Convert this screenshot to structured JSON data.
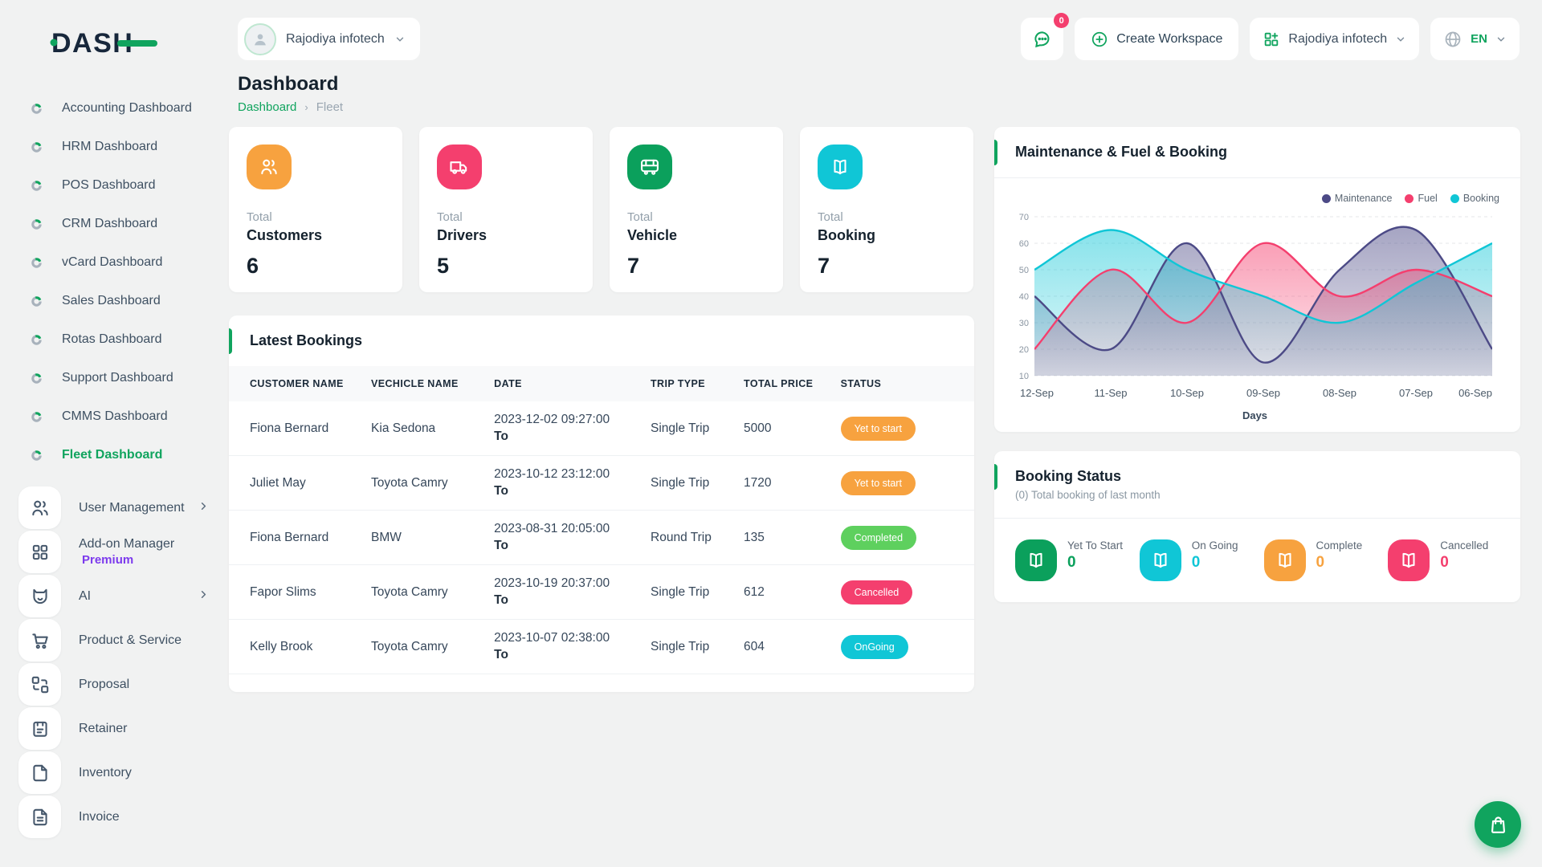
{
  "brand": {
    "logo_text": "DASH",
    "accent_color": "#10a45e",
    "dark_color": "#17273b"
  },
  "header": {
    "workspace": "Rajodiya infotech",
    "messages_badge": "0",
    "create_workspace": "Create Workspace",
    "account": "Rajodiya infotech",
    "language": "EN"
  },
  "page": {
    "title": "Dashboard",
    "breadcrumb_home": "Dashboard",
    "breadcrumb_current": "Fleet"
  },
  "sidebar": {
    "dashboards": [
      {
        "label": "Accounting Dashboard",
        "icon": "donut-icon",
        "active": false
      },
      {
        "label": "HRM Dashboard",
        "icon": "donut-icon",
        "active": false
      },
      {
        "label": "POS Dashboard",
        "icon": "donut-icon",
        "active": false
      },
      {
        "label": "CRM Dashboard",
        "icon": "donut-icon",
        "active": false
      },
      {
        "label": "vCard Dashboard",
        "icon": "donut-icon",
        "active": false
      },
      {
        "label": "Sales Dashboard",
        "icon": "donut-icon",
        "active": false
      },
      {
        "label": "Rotas Dashboard",
        "icon": "donut-icon",
        "active": false
      },
      {
        "label": "Support Dashboard",
        "icon": "donut-icon",
        "active": false
      },
      {
        "label": "CMMS Dashboard",
        "icon": "donut-icon",
        "active": false
      },
      {
        "label": "Fleet Dashboard",
        "icon": "donut-icon",
        "active": true
      }
    ],
    "modules": [
      {
        "label": "User Management",
        "icon": "users-icon",
        "chevron": true,
        "sub": ""
      },
      {
        "label": "Add-on Manager",
        "icon": "addon-grid-icon",
        "chevron": false,
        "sub": "Premium"
      },
      {
        "label": "AI",
        "icon": "ai-fox-icon",
        "chevron": true,
        "sub": ""
      },
      {
        "label": "Product & Service",
        "icon": "cart-icon",
        "chevron": false,
        "sub": ""
      },
      {
        "label": "Proposal",
        "icon": "proposal-icon",
        "chevron": false,
        "sub": ""
      },
      {
        "label": "Retainer",
        "icon": "retainer-icon",
        "chevron": false,
        "sub": ""
      },
      {
        "label": "Inventory",
        "icon": "inventory-icon",
        "chevron": false,
        "sub": ""
      },
      {
        "label": "Invoice",
        "icon": "invoice-icon",
        "chevron": false,
        "sub": ""
      }
    ]
  },
  "stats": [
    {
      "prefix": "Total",
      "label": "Customers",
      "value": "6",
      "color": "#f7a23f",
      "icon": "users-icon"
    },
    {
      "prefix": "Total",
      "label": "Drivers",
      "value": "5",
      "color": "#f43f6e",
      "icon": "truck-icon"
    },
    {
      "prefix": "Total",
      "label": "Vehicle",
      "value": "7",
      "color": "#0ba05c",
      "icon": "bus-icon"
    },
    {
      "prefix": "Total",
      "label": "Booking",
      "value": "7",
      "color": "#10c6d6",
      "icon": "book-icon"
    }
  ],
  "bookings": {
    "title": "Latest Bookings",
    "columns": [
      "Customer Name",
      "Vechicle Name",
      "Date",
      "Trip Type",
      "Total Price",
      "Status"
    ],
    "rows": [
      {
        "customer": "Fiona Bernard",
        "vehicle": "Kia Sedona",
        "date": "2023-12-02 09:27:00",
        "date_to": "To",
        "trip": "Single Trip",
        "price": "5000",
        "status": "Yet to start",
        "status_color": "#f7a23f"
      },
      {
        "customer": "Juliet May",
        "vehicle": "Toyota Camry",
        "date": "2023-10-12 23:12:00",
        "date_to": "To",
        "trip": "Single Trip",
        "price": "1720",
        "status": "Yet to start",
        "status_color": "#f7a23f"
      },
      {
        "customer": "Fiona Bernard",
        "vehicle": "BMW",
        "date": "2023-08-31 20:05:00",
        "date_to": "To",
        "trip": "Round Trip",
        "price": "135",
        "status": "Completed",
        "status_color": "#5ed05e"
      },
      {
        "customer": "Fapor Slims",
        "vehicle": "Toyota Camry",
        "date": "2023-10-19 20:37:00",
        "date_to": "To",
        "trip": "Single Trip",
        "price": "612",
        "status": "Cancelled",
        "status_color": "#f43f6e"
      },
      {
        "customer": "Kelly Brook",
        "vehicle": "Toyota Camry",
        "date": "2023-10-07 02:38:00",
        "date_to": "To",
        "trip": "Single Trip",
        "price": "604",
        "status": "OnGoing",
        "status_color": "#10c6d6"
      }
    ]
  },
  "chart_card": {
    "title": "Maintenance & Fuel & Booking"
  },
  "chart_data": {
    "type": "area",
    "x": [
      "12-Sep",
      "11-Sep",
      "10-Sep",
      "09-Sep",
      "08-Sep",
      "07-Sep",
      "06-Sep"
    ],
    "series": [
      {
        "name": "Maintenance",
        "color": "#4c4a86",
        "values": [
          40,
          20,
          60,
          15,
          50,
          65,
          20
        ]
      },
      {
        "name": "Fuel",
        "color": "#f43f6e",
        "values": [
          20,
          50,
          30,
          60,
          40,
          50,
          40
        ]
      },
      {
        "name": "Booking",
        "color": "#10c6d6",
        "values": [
          50,
          65,
          50,
          40,
          30,
          45,
          60
        ]
      }
    ],
    "xlabel": "Days",
    "ylim": [
      10,
      70
    ],
    "yticks": [
      10,
      20,
      30,
      40,
      50,
      60,
      70
    ],
    "legend_position": "top-right",
    "grid": true
  },
  "booking_status": {
    "title": "Booking Status",
    "subtitle": "(0) Total booking of last month",
    "items": [
      {
        "label": "Yet To Start",
        "value": "0",
        "color": "#0ba05c",
        "icon": "book-icon"
      },
      {
        "label": "On Going",
        "value": "0",
        "color": "#10c6d6",
        "icon": "book-icon"
      },
      {
        "label": "Complete",
        "value": "0",
        "color": "#f7a23f",
        "icon": "book-icon"
      },
      {
        "label": "Cancelled",
        "value": "0",
        "color": "#f43f6e",
        "icon": "book-icon"
      }
    ]
  },
  "fab": {
    "icon": "shopping-bag-icon"
  }
}
